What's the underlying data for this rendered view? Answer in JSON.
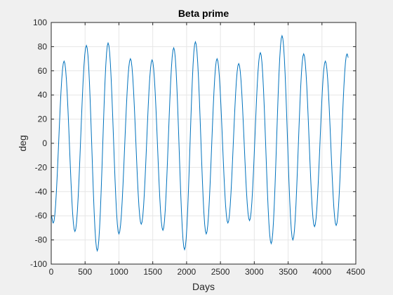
{
  "chart_data": {
    "type": "line",
    "title": "Beta prime",
    "xlabel": "Days",
    "ylabel": "deg",
    "xlim": [
      0,
      4500
    ],
    "ylim": [
      -100,
      100
    ],
    "xticks": [
      0,
      500,
      1000,
      1500,
      2000,
      2500,
      3000,
      3500,
      4000,
      4500
    ],
    "yticks": [
      -100,
      -80,
      -60,
      -40,
      -20,
      0,
      20,
      40,
      60,
      80,
      100
    ],
    "grid": true,
    "series": [
      {
        "color": "#0072bd",
        "extrema": [
          [
            0,
            -60
          ],
          [
            30,
            -66
          ],
          [
            190,
            68
          ],
          [
            350,
            -73
          ],
          [
            520,
            81
          ],
          [
            680,
            -89
          ],
          [
            840,
            83
          ],
          [
            1000,
            -75
          ],
          [
            1170,
            70
          ],
          [
            1330,
            -67
          ],
          [
            1490,
            69
          ],
          [
            1650,
            -72
          ],
          [
            1810,
            79
          ],
          [
            1970,
            -88
          ],
          [
            2130,
            84
          ],
          [
            2290,
            -75
          ],
          [
            2450,
            70
          ],
          [
            2610,
            -66
          ],
          [
            2770,
            66
          ],
          [
            2930,
            -64
          ],
          [
            3090,
            75
          ],
          [
            3250,
            -83
          ],
          [
            3410,
            89
          ],
          [
            3570,
            -80
          ],
          [
            3730,
            74
          ],
          [
            3890,
            -69
          ],
          [
            4050,
            68
          ],
          [
            4210,
            -68
          ],
          [
            4370,
            74
          ],
          [
            4390,
            71
          ]
        ]
      }
    ]
  }
}
